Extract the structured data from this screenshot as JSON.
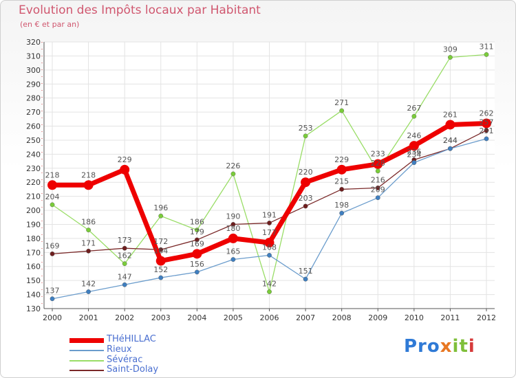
{
  "title": "Evolution des Impôts locaux par Habitant",
  "subtitle": "(en € et par an)",
  "logo": {
    "text": "Proxiti",
    "part1": "Pro",
    "part2": "x",
    "part3": "it",
    "part4": "i"
  },
  "chart_data": {
    "type": "line",
    "title": "Evolution des Impôts locaux par Habitant",
    "subtitle": "(en € et par an)",
    "xlabel": "",
    "ylabel": "",
    "categories": [
      "2000",
      "2001",
      "2002",
      "2003",
      "2004",
      "2005",
      "2006",
      "2007",
      "2008",
      "2009",
      "2010",
      "2011",
      "2012"
    ],
    "ylim": [
      130,
      320
    ],
    "yticks": [
      130,
      140,
      150,
      160,
      170,
      180,
      190,
      200,
      210,
      220,
      230,
      240,
      250,
      260,
      270,
      280,
      290,
      300,
      310,
      320
    ],
    "grid": true,
    "legend_position": "bottom-left",
    "series": [
      {
        "name": "THéHILLAC",
        "color": "#ee0000",
        "marker_color": "#ee0000",
        "label_color": "#555555",
        "values": [
          218,
          218,
          229,
          164,
          169,
          180,
          177,
          220,
          229,
          233,
          246,
          261,
          262
        ]
      },
      {
        "name": "Rieux",
        "color": "#6a9ccc",
        "marker_color": "#3f7fc0",
        "label_color": "#555555",
        "values": [
          137,
          142,
          147,
          152,
          156,
          165,
          168,
          151,
          198,
          209,
          234,
          244,
          251
        ]
      },
      {
        "name": "Sévérac",
        "color": "#99dd66",
        "marker_color": "#7acc3a",
        "label_color": "#555555",
        "values": [
          204,
          186,
          162,
          196,
          186,
          226,
          142,
          253,
          271,
          228,
          267,
          309,
          311
        ]
      },
      {
        "name": "Saint-Dolay",
        "color": "#7a2828",
        "marker_color": "#6e1e1e",
        "label_color": "#555555",
        "values": [
          169,
          171,
          173,
          172,
          179,
          190,
          191,
          203,
          215,
          216,
          236,
          244,
          257
        ]
      }
    ]
  }
}
